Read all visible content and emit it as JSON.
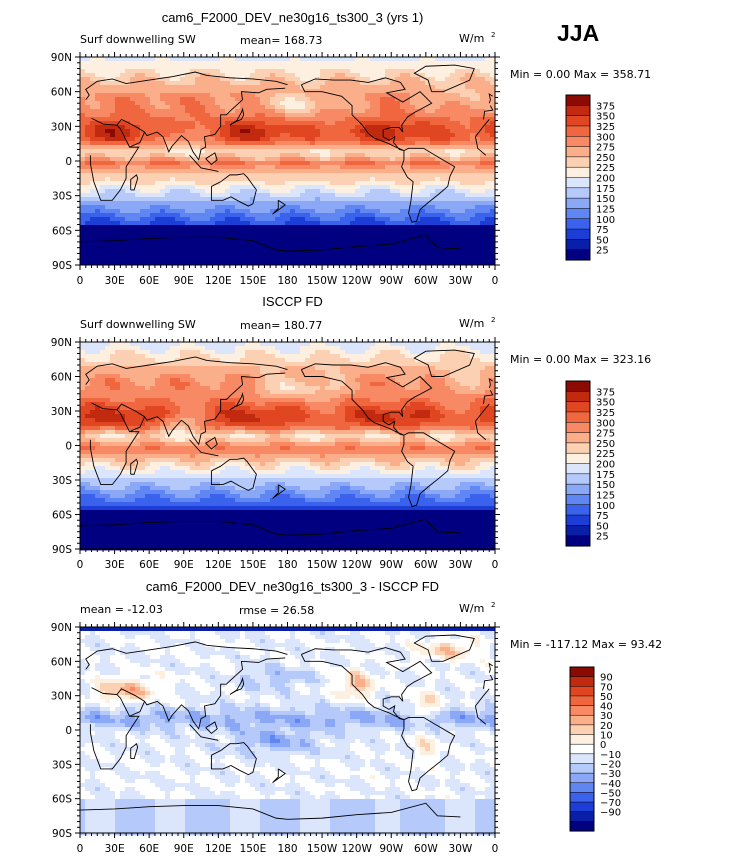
{
  "season": "JJA",
  "colors": {
    "panel1_2_levels": [
      "#000080",
      "#0a1fa8",
      "#1c3ed6",
      "#3a62ec",
      "#5f86f2",
      "#8aa8f6",
      "#b5c9fa",
      "#dbe6fd",
      "#fdf0e0",
      "#fcd0b2",
      "#fbae8a",
      "#f78a64",
      "#f0673f",
      "#e04622",
      "#c22a10",
      "#8c0a04"
    ],
    "diff_levels": [
      "#000080",
      "#0a1fa8",
      "#1c3ed6",
      "#3a62ec",
      "#5f86f2",
      "#8aa8f6",
      "#b5c9fa",
      "#dbe6fd",
      "#ffffff",
      "#fdf0e0",
      "#fcd0b2",
      "#fbae8a",
      "#f78a64",
      "#f0673f",
      "#e04622",
      "#c22a10",
      "#8c0a04"
    ]
  },
  "chart_data": [
    {
      "type": "heatmap",
      "title": "cam6_F2000_DEV_ne30g16_ts300_3 (yrs 1)",
      "left_label": "Surf downwelling SW",
      "center_label": "mean= 168.73",
      "units": "W/m",
      "units_sup": "2",
      "minmax": "Min =    0.00 Max = 358.71",
      "x_ticks": [
        "0",
        "30E",
        "60E",
        "90E",
        "120E",
        "150E",
        "180",
        "150W",
        "120W",
        "90W",
        "60W",
        "30W",
        "0"
      ],
      "y_ticks": [
        "90N",
        "60N",
        "30N",
        "0",
        "30S",
        "60S",
        "90S"
      ],
      "colorbar_labels": [
        "375",
        "350",
        "325",
        "300",
        "275",
        "250",
        "225",
        "200",
        "175",
        "150",
        "125",
        "100",
        "75",
        "50",
        "25"
      ]
    },
    {
      "type": "heatmap",
      "title": "ISCCP FD",
      "left_label": "Surf downwelling SW",
      "center_label": "mean= 180.77",
      "units": "W/m",
      "units_sup": "2",
      "minmax": "Min =    0.00 Max = 323.16",
      "x_ticks": [
        "0",
        "30E",
        "60E",
        "90E",
        "120E",
        "150E",
        "180",
        "150W",
        "120W",
        "90W",
        "60W",
        "30W",
        "0"
      ],
      "y_ticks": [
        "90N",
        "60N",
        "30N",
        "0",
        "30S",
        "60S",
        "90S"
      ],
      "colorbar_labels": [
        "375",
        "350",
        "325",
        "300",
        "275",
        "250",
        "225",
        "200",
        "175",
        "150",
        "125",
        "100",
        "75",
        "50",
        "25"
      ]
    },
    {
      "type": "heatmap",
      "title": "cam6_F2000_DEV_ne30g16_ts300_3 - ISCCP FD",
      "left_label": "mean = -12.03",
      "center_label": "rmse =  26.58",
      "units": "W/m",
      "units_sup": "2",
      "minmax": "Min = -117.12 Max =  93.42",
      "x_ticks": [
        "0",
        "30E",
        "60E",
        "90E",
        "120E",
        "150E",
        "180",
        "150W",
        "120W",
        "90W",
        "60W",
        "30W",
        "0"
      ],
      "y_ticks": [
        "90N",
        "60N",
        "30N",
        "0",
        "30S",
        "60S",
        "90S"
      ],
      "colorbar_labels": [
        "90",
        "70",
        "50",
        "40",
        "30",
        "20",
        "10",
        "0",
        "−10",
        "−20",
        "−30",
        "−40",
        "−50",
        "−70",
        "−90"
      ]
    }
  ]
}
